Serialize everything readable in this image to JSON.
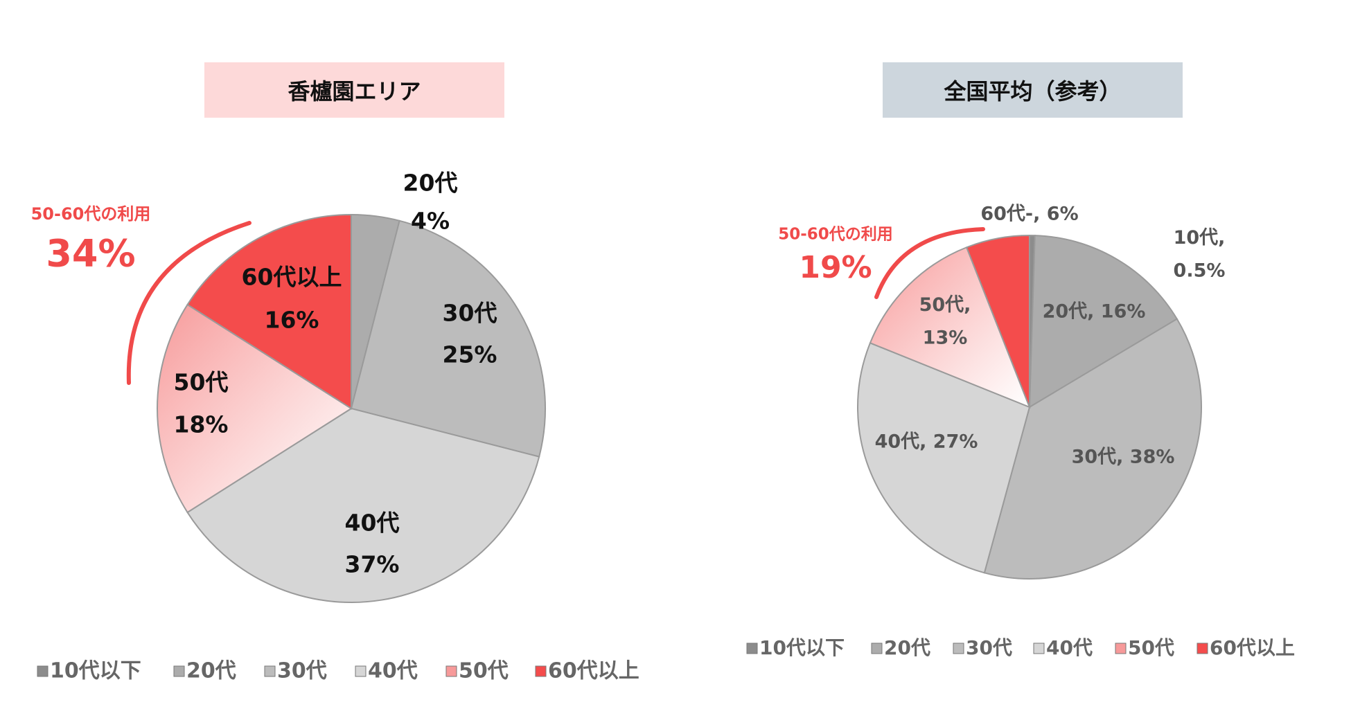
{
  "chart_data": [
    {
      "type": "pie",
      "title": "香櫨園エリア",
      "title_bg": "#fdd9d9",
      "categories": [
        "10代以下",
        "20代",
        "30代",
        "40代",
        "50代",
        "60代以上"
      ],
      "values": [
        0,
        4,
        25,
        37,
        18,
        16
      ],
      "value_labels": [
        null,
        "4%",
        "25%",
        "37%",
        "18%",
        "16%"
      ],
      "colors": [
        "#8c8c8c",
        "#acacac",
        "#bcbcbc",
        "#d6d6d6",
        "#f79a9a",
        "#f44c4c"
      ],
      "annotation": "50-60代の利用",
      "annotation_value": "34%",
      "annotation_color": "#f04a4a"
    },
    {
      "type": "pie",
      "title": "全国平均（参考）",
      "title_bg": "#cdd6dd",
      "categories": [
        "10代以下",
        "20代",
        "30代",
        "40代",
        "50代",
        "60代以上"
      ],
      "values": [
        0.5,
        16,
        38,
        27,
        13,
        6
      ],
      "value_labels": [
        "10代,\n0.5%",
        "20代, 16%",
        "30代, 38%",
        "40代, 27%",
        "50代,\n13%",
        "60代-, 6%"
      ],
      "colors": [
        "#8c8c8c",
        "#acacac",
        "#bcbcbc",
        "#d6d6d6",
        "#f79a9a",
        "#f44c4c"
      ],
      "annotation": "50-60代の利用",
      "annotation_value": "19%",
      "annotation_color": "#f04a4a"
    }
  ]
}
